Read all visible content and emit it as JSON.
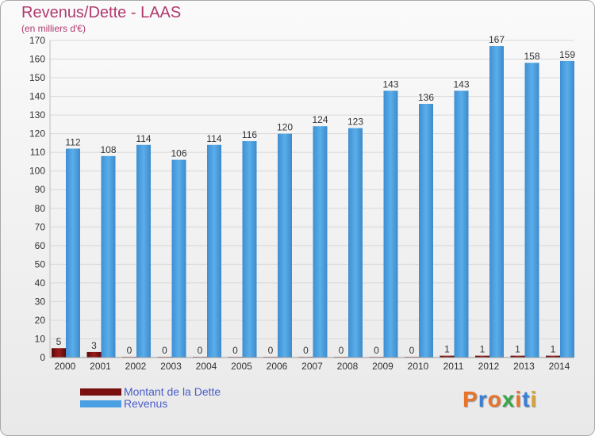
{
  "header": {
    "title": "Revenus/Dette - LAAS",
    "subtitle": "(en milliers d'€)"
  },
  "logo": {
    "text": "Proxiti",
    "colors": [
      "#e8732a",
      "#3a7fd6",
      "#e8732a",
      "#3aa64a",
      "#e8732a",
      "#3a7fd6",
      "#d6a23a"
    ]
  },
  "colors": {
    "dette": "#7a0f0f",
    "revenus": "#4aa0e2",
    "axis_text": "#333333",
    "grid": "#d8d8d8"
  },
  "legend": {
    "items": [
      {
        "label": "Montant de la Dette",
        "color": "#7a0f0f"
      },
      {
        "label": "Revenus",
        "color": "#4aa0e2"
      }
    ]
  },
  "chart_data": {
    "type": "bar",
    "title": "Revenus/Dette - LAAS",
    "subtitle": "(en milliers d'€)",
    "categories": [
      "2000",
      "2001",
      "2002",
      "2003",
      "2004",
      "2005",
      "2006",
      "2007",
      "2008",
      "2009",
      "2010",
      "2011",
      "2012",
      "2013",
      "2014"
    ],
    "series": [
      {
        "name": "Montant de la Dette",
        "values": [
          5,
          3,
          0,
          0,
          0,
          0,
          0,
          0,
          0,
          0,
          0,
          1,
          1,
          1,
          1
        ]
      },
      {
        "name": "Revenus",
        "values": [
          112,
          108,
          114,
          106,
          114,
          116,
          120,
          124,
          123,
          143,
          136,
          143,
          167,
          158,
          159
        ]
      }
    ],
    "ylim": [
      0,
      170
    ],
    "yticks": [
      0,
      10,
      20,
      30,
      40,
      50,
      60,
      70,
      80,
      90,
      100,
      110,
      120,
      130,
      140,
      150,
      160,
      170
    ],
    "grid": true,
    "legend_position": "bottom-left"
  }
}
